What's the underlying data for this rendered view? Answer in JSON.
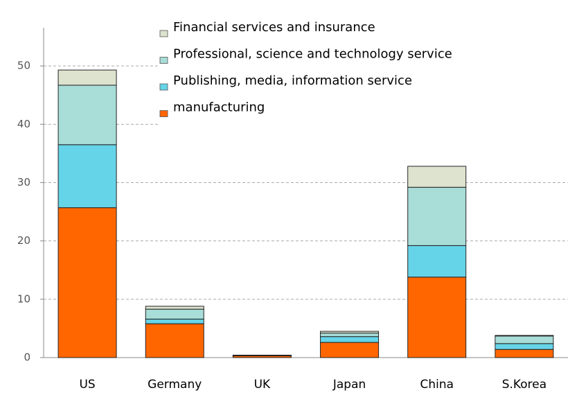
{
  "chart_data": {
    "type": "stacked_bar",
    "categories": [
      "US",
      "Germany",
      "UK",
      "Japan",
      "China",
      "S.Korea"
    ],
    "series": [
      {
        "name": "manufacturing",
        "color": "#ff6600",
        "values": [
          25.7,
          5.8,
          0.3,
          2.6,
          13.8,
          1.4
        ]
      },
      {
        "name": "Publishing, media, information service",
        "color": "#66d4e8",
        "values": [
          10.8,
          0.8,
          0.05,
          1.0,
          5.4,
          1.0
        ]
      },
      {
        "name": "Professional, science and technology service",
        "color": "#a8ddd8",
        "values": [
          10.2,
          1.7,
          0.05,
          0.6,
          10.0,
          1.3
        ]
      },
      {
        "name": "Financial services and insurance",
        "color": "#dde3cf",
        "values": [
          2.6,
          0.5,
          0.02,
          0.3,
          3.6,
          0.1
        ]
      }
    ],
    "ylim": [
      0,
      60
    ],
    "yticks": [
      0,
      10,
      20,
      30,
      40,
      50
    ],
    "grid": true,
    "legend": "top-center"
  }
}
